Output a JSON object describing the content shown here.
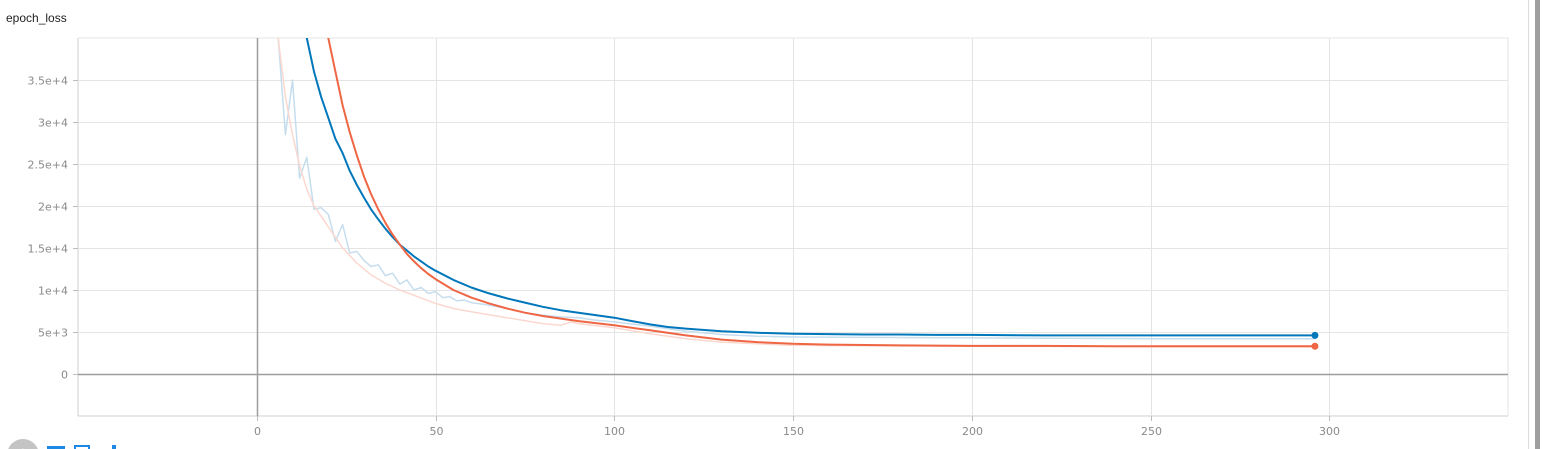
{
  "card": {
    "title": "epoch_loss"
  },
  "toolbar": {
    "avatar_glyph": "↕",
    "icons": [
      "fit-domain-icon",
      "data-selection-icon",
      "download-icon"
    ]
  },
  "colors": {
    "blue": "#0077bb",
    "blue_raw": "#c6dded",
    "orange": "#ee6644",
    "orange_raw": "#fbd8cf",
    "grid": "#e4e4e4",
    "axis": "#9e9e9e"
  },
  "chart_data": {
    "type": "line",
    "title": "epoch_loss",
    "xlabel": "",
    "ylabel": "",
    "xlim": [
      -50,
      350
    ],
    "ylim": [
      -5000,
      40000
    ],
    "x_ticks": [
      0,
      50,
      100,
      150,
      200,
      250,
      300
    ],
    "x_tick_labels": [
      "0",
      "50",
      "100",
      "150",
      "200",
      "250",
      "300"
    ],
    "y_ticks": [
      0,
      5000,
      10000,
      15000,
      20000,
      25000,
      30000,
      35000
    ],
    "y_tick_labels": [
      "0",
      "5e+3",
      "1e+4",
      "1.5e+4",
      "2e+4",
      "2.5e+4",
      "3e+4",
      "3.5e+4"
    ],
    "grid": true,
    "series": [
      {
        "role": "smoothed",
        "color": "#0077bb",
        "x": [
          14,
          16,
          18,
          20,
          22,
          24,
          26,
          28,
          30,
          32,
          34,
          36,
          38,
          40,
          42,
          44,
          46,
          48,
          50,
          55,
          60,
          65,
          70,
          75,
          80,
          85,
          90,
          95,
          100,
          105,
          110,
          115,
          120,
          130,
          140,
          150,
          160,
          170,
          180,
          190,
          200,
          220,
          240,
          260,
          280,
          296
        ],
        "y": [
          40000,
          36000,
          33000,
          30500,
          28000,
          26300,
          24200,
          22500,
          21000,
          19600,
          18400,
          17300,
          16300,
          15400,
          14700,
          14000,
          13400,
          12800,
          12300,
          11200,
          10300,
          9600,
          9000,
          8500,
          8000,
          7600,
          7300,
          7000,
          6700,
          6300,
          5900,
          5600,
          5400,
          5100,
          4900,
          4800,
          4750,
          4700,
          4700,
          4650,
          4650,
          4600,
          4600,
          4600,
          4600,
          4600
        ]
      },
      {
        "role": "smoothed",
        "color": "#ee6644",
        "x": [
          20,
          22,
          24,
          26,
          28,
          30,
          32,
          34,
          36,
          38,
          40,
          42,
          44,
          46,
          48,
          50,
          55,
          60,
          65,
          70,
          75,
          80,
          90,
          100,
          110,
          120,
          130,
          140,
          150,
          160,
          180,
          200,
          220,
          240,
          260,
          280,
          296
        ],
        "y": [
          40000,
          36000,
          32000,
          28800,
          26000,
          23500,
          21400,
          19600,
          18000,
          16600,
          15400,
          14300,
          13400,
          12600,
          11900,
          11300,
          10000,
          9100,
          8400,
          7800,
          7300,
          6900,
          6300,
          5800,
          5200,
          4600,
          4100,
          3800,
          3600,
          3500,
          3400,
          3350,
          3350,
          3300,
          3300,
          3300,
          3300
        ]
      },
      {
        "role": "raw",
        "color": "#c6dded",
        "x": [
          6,
          8,
          10,
          12,
          14,
          16,
          18,
          20,
          22,
          24,
          26,
          28,
          30,
          32,
          34,
          36,
          38,
          40,
          42,
          44,
          46,
          48,
          50,
          52,
          54,
          56,
          58,
          60,
          65,
          70,
          75,
          80,
          85,
          90,
          95,
          100,
          110,
          120,
          130,
          140,
          150,
          200,
          250,
          296
        ],
        "y": [
          40000,
          28500,
          35000,
          23300,
          25800,
          19600,
          19800,
          19000,
          15800,
          17800,
          14400,
          14600,
          13500,
          12800,
          13000,
          11700,
          12000,
          10700,
          11200,
          10000,
          10300,
          9600,
          9800,
          9100,
          9200,
          8700,
          8800,
          8500,
          8200,
          7800,
          7300,
          7000,
          6800,
          6700,
          6400,
          6200,
          5700,
          5100,
          4700,
          4500,
          4400,
          4300,
          4200,
          4200
        ]
      },
      {
        "role": "raw",
        "color": "#fbd8cf",
        "x": [
          6,
          8,
          10,
          12,
          14,
          16,
          18,
          20,
          24,
          28,
          32,
          36,
          40,
          45,
          50,
          55,
          60,
          70,
          80,
          85,
          88,
          90,
          100,
          110,
          120,
          130,
          140,
          150,
          200,
          250,
          296
        ],
        "y": [
          40000,
          33000,
          28500,
          24800,
          22000,
          20000,
          18800,
          17500,
          15000,
          13200,
          11800,
          10800,
          10000,
          9200,
          8400,
          7800,
          7400,
          6700,
          6000,
          5800,
          6200,
          6000,
          5500,
          4800,
          4200,
          3800,
          3600,
          3400,
          3300,
          3250,
          3250
        ]
      }
    ],
    "end_markers": [
      {
        "x": 296,
        "y": 4600,
        "color": "#0077bb"
      },
      {
        "x": 296,
        "y": 3300,
        "color": "#ee6644"
      }
    ]
  }
}
